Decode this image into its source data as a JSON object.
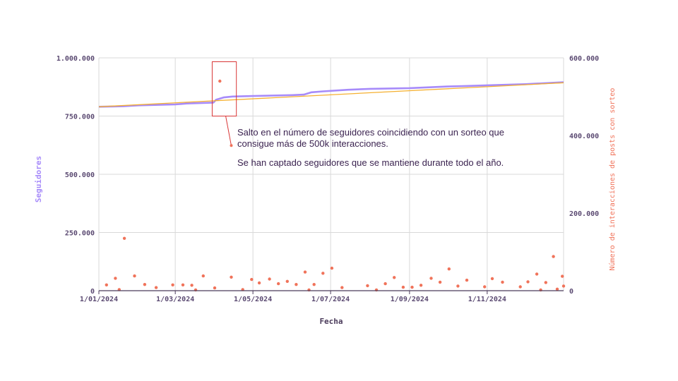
{
  "chart_data": {
    "type": "line",
    "title": "",
    "xlabel": "Fecha",
    "ylabel": "Seguidores",
    "y2label": "Número de interacciones de posts con sorteo",
    "x_range": [
      "2024-01-01",
      "2024-12-31"
    ],
    "x_ticks": [
      {
        "date": "2024-01-01",
        "label": "1/01/2024"
      },
      {
        "date": "2024-03-01",
        "label": "1/03/2024"
      },
      {
        "date": "2024-05-01",
        "label": "1/05/2024"
      },
      {
        "date": "2024-07-01",
        "label": "1/07/2024"
      },
      {
        "date": "2024-09-01",
        "label": "1/09/2024"
      },
      {
        "date": "2024-11-01",
        "label": "1/11/2024"
      }
    ],
    "ylim": [
      0,
      1000000
    ],
    "y_ticks": [
      {
        "value": 0,
        "label": "0"
      },
      {
        "value": 250000,
        "label": "250.000"
      },
      {
        "value": 500000,
        "label": "500.000"
      },
      {
        "value": 750000,
        "label": "750.000"
      },
      {
        "value": 1000000,
        "label": "1.000.000"
      }
    ],
    "y2lim": [
      0,
      600000
    ],
    "y2_ticks": [
      {
        "value": 0,
        "label": "0"
      },
      {
        "value": 200000,
        "label": "200.000"
      },
      {
        "value": 400000,
        "label": "400.000"
      },
      {
        "value": 600000,
        "label": "600.000"
      }
    ],
    "grid": true,
    "series": [
      {
        "kind": "line",
        "axis": "left",
        "color": "#a78bfa",
        "points": [
          [
            "2024-01-01",
            790000
          ],
          [
            "2024-01-20",
            792000
          ],
          [
            "2024-02-01",
            796000
          ],
          [
            "2024-03-01",
            800000
          ],
          [
            "2024-03-10",
            804000
          ],
          [
            "2024-03-31",
            808000
          ],
          [
            "2024-04-02",
            820000
          ],
          [
            "2024-04-08",
            830000
          ],
          [
            "2024-04-15",
            834000
          ],
          [
            "2024-05-01",
            836000
          ],
          [
            "2024-06-01",
            840000
          ],
          [
            "2024-06-10",
            842000
          ],
          [
            "2024-06-16",
            852000
          ],
          [
            "2024-06-25",
            856000
          ],
          [
            "2024-07-15",
            863000
          ],
          [
            "2024-08-01",
            867000
          ],
          [
            "2024-09-01",
            870000
          ],
          [
            "2024-10-01",
            877000
          ],
          [
            "2024-10-15",
            879000
          ],
          [
            "2024-11-01",
            882000
          ],
          [
            "2024-12-01",
            887000
          ],
          [
            "2024-12-31",
            895000
          ]
        ]
      },
      {
        "kind": "line",
        "axis": "left",
        "color": "#f5b031",
        "points": [
          [
            "2024-01-01",
            790000
          ],
          [
            "2024-12-31",
            893000
          ]
        ]
      },
      {
        "kind": "scatter",
        "axis": "right",
        "color": "#f0735a",
        "points": [
          [
            "2024-01-07",
            15000
          ],
          [
            "2024-01-14",
            32000
          ],
          [
            "2024-01-17",
            3000
          ],
          [
            "2024-01-21",
            135000
          ],
          [
            "2024-01-29",
            38000
          ],
          [
            "2024-02-06",
            16000
          ],
          [
            "2024-02-15",
            8000
          ],
          [
            "2024-02-28",
            15000
          ],
          [
            "2024-03-07",
            15000
          ],
          [
            "2024-03-14",
            14000
          ],
          [
            "2024-03-17",
            2000
          ],
          [
            "2024-03-23",
            38000
          ],
          [
            "2024-04-01",
            7000
          ],
          [
            "2024-04-05",
            540000
          ],
          [
            "2024-04-14",
            35000
          ],
          [
            "2024-04-23",
            3000
          ],
          [
            "2024-04-30",
            29000
          ],
          [
            "2024-05-06",
            20000
          ],
          [
            "2024-05-14",
            30000
          ],
          [
            "2024-05-21",
            18000
          ],
          [
            "2024-05-28",
            24000
          ],
          [
            "2024-06-04",
            16000
          ],
          [
            "2024-06-11",
            48000
          ],
          [
            "2024-06-14",
            2000
          ],
          [
            "2024-06-18",
            16000
          ],
          [
            "2024-06-25",
            45000
          ],
          [
            "2024-07-02",
            58000
          ],
          [
            "2024-07-10",
            8000
          ],
          [
            "2024-07-30",
            13000
          ],
          [
            "2024-08-06",
            2000
          ],
          [
            "2024-08-13",
            18000
          ],
          [
            "2024-08-20",
            34000
          ],
          [
            "2024-08-27",
            9000
          ],
          [
            "2024-09-03",
            9000
          ],
          [
            "2024-09-10",
            14000
          ],
          [
            "2024-09-18",
            32000
          ],
          [
            "2024-09-25",
            22000
          ],
          [
            "2024-10-02",
            56000
          ],
          [
            "2024-10-09",
            12000
          ],
          [
            "2024-10-16",
            27000
          ],
          [
            "2024-10-30",
            10000
          ],
          [
            "2024-11-05",
            31000
          ],
          [
            "2024-11-13",
            22000
          ],
          [
            "2024-11-27",
            10000
          ],
          [
            "2024-12-03",
            23000
          ],
          [
            "2024-12-10",
            43000
          ],
          [
            "2024-12-13",
            2000
          ],
          [
            "2024-12-17",
            21000
          ],
          [
            "2024-12-23",
            88000
          ],
          [
            "2024-12-26",
            4000
          ],
          [
            "2024-12-30",
            37000
          ],
          [
            "2024-12-31",
            12000
          ]
        ]
      }
    ],
    "highlight_box": {
      "x_from": "2024-03-30",
      "x_to": "2024-04-18",
      "y2_from": 450000,
      "y2_to": 590000
    },
    "annotation": {
      "target": [
        "2024-04-14",
        374000
      ],
      "lines": [
        "Salto en el número de seguidores coincidiendo con un sorteo que",
        "consigue más de 500k interacciones.",
        "",
        "Se han captado seguidores que se mantiene durante todo el año."
      ]
    },
    "colors": {
      "grid": "#d9d9d9",
      "axis": "#4a3a5a",
      "left_axis_title": "#a78bfa",
      "right_axis_title": "#f0735a",
      "x_axis_title": "#4a3a5a",
      "box": "#d93636",
      "annotation_line": "#d93636",
      "annotation_dot": "#f0735a"
    }
  }
}
